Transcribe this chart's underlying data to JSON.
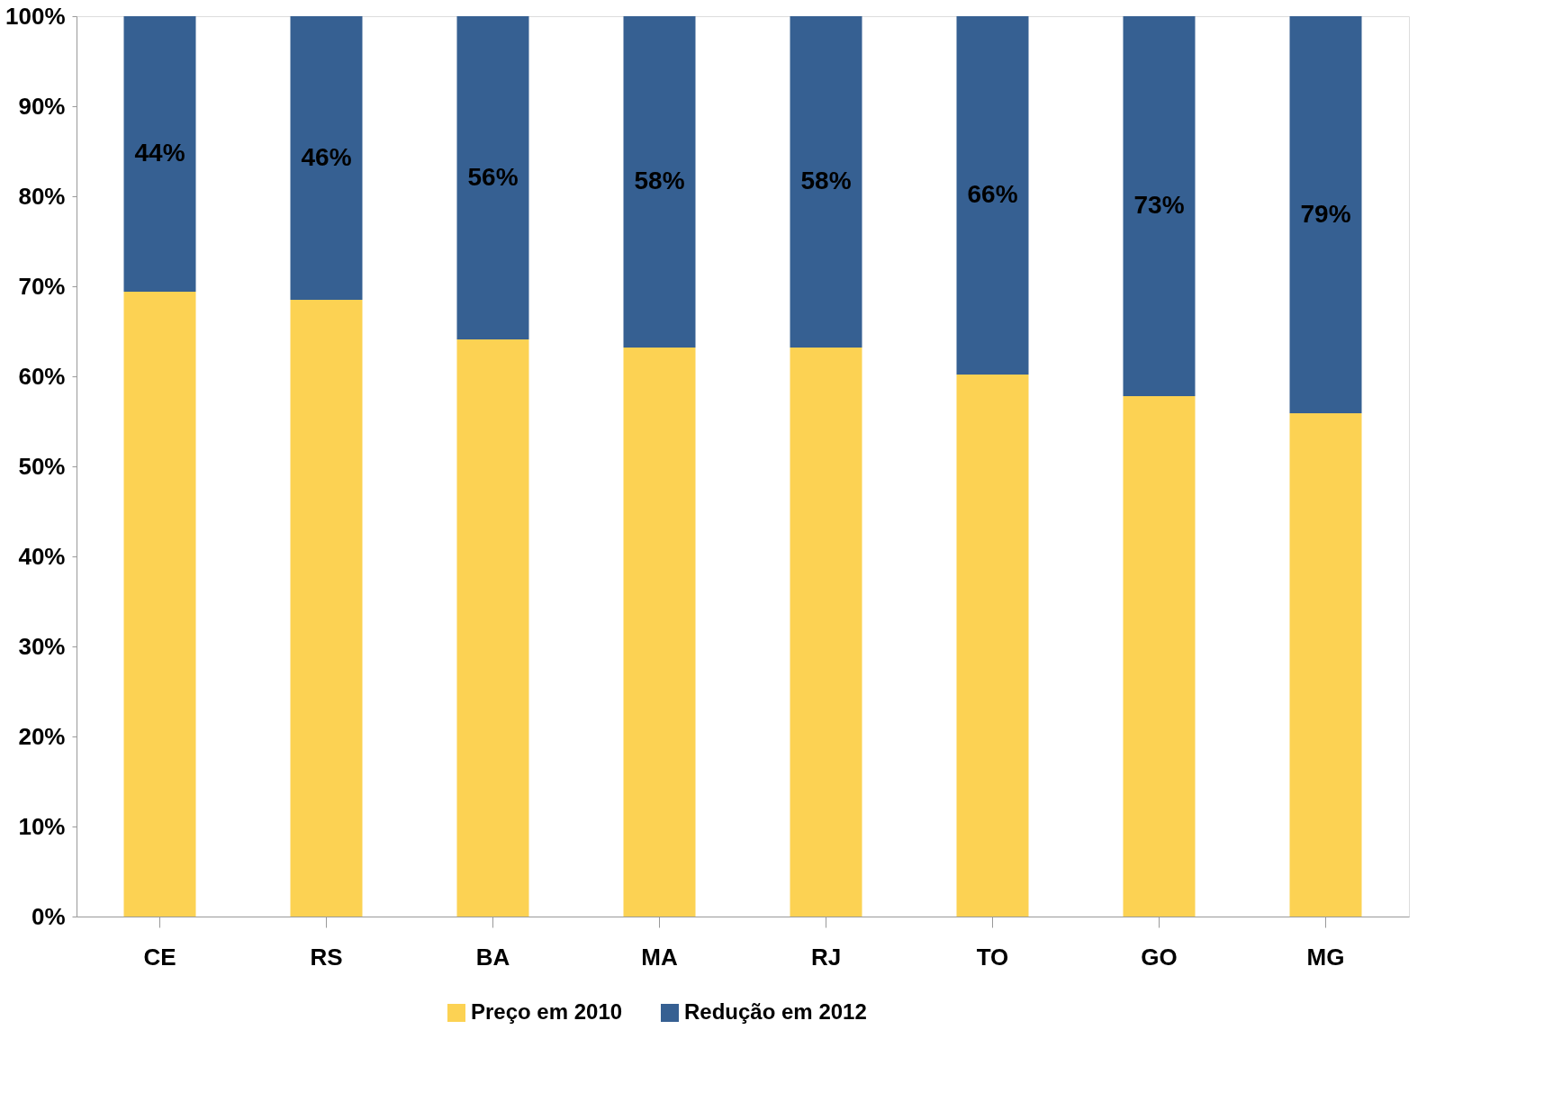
{
  "chart_data": {
    "type": "bar",
    "stacked": true,
    "categories": [
      "CE",
      "RS",
      "BA",
      "MA",
      "RJ",
      "TO",
      "GO",
      "MG"
    ],
    "series": [
      {
        "name": "Preço em 2010",
        "color": "#fcd253",
        "values": [
          69.4,
          68.5,
          64.1,
          63.2,
          63.2,
          60.2,
          57.8,
          55.9
        ]
      },
      {
        "name": "Redução em 2012",
        "color": "#366092",
        "values": [
          30.6,
          31.5,
          35.9,
          36.8,
          36.8,
          39.8,
          42.2,
          44.1
        ]
      }
    ],
    "annotations": [
      "44%",
      "46%",
      "56%",
      "58%",
      "58%",
      "66%",
      "73%",
      "79%"
    ],
    "ylim": [
      0,
      100
    ],
    "yticks": [
      {
        "value": 0,
        "label": "0%"
      },
      {
        "value": 10,
        "label": "10%"
      },
      {
        "value": 20,
        "label": "20%"
      },
      {
        "value": 30,
        "label": "30%"
      },
      {
        "value": 40,
        "label": "40%"
      },
      {
        "value": 50,
        "label": "50%"
      },
      {
        "value": 60,
        "label": "60%"
      },
      {
        "value": 70,
        "label": "70%"
      },
      {
        "value": 80,
        "label": "80%"
      },
      {
        "value": 90,
        "label": "90%"
      },
      {
        "value": 100,
        "label": "100%"
      }
    ],
    "grid": false,
    "legend": "bottom"
  }
}
